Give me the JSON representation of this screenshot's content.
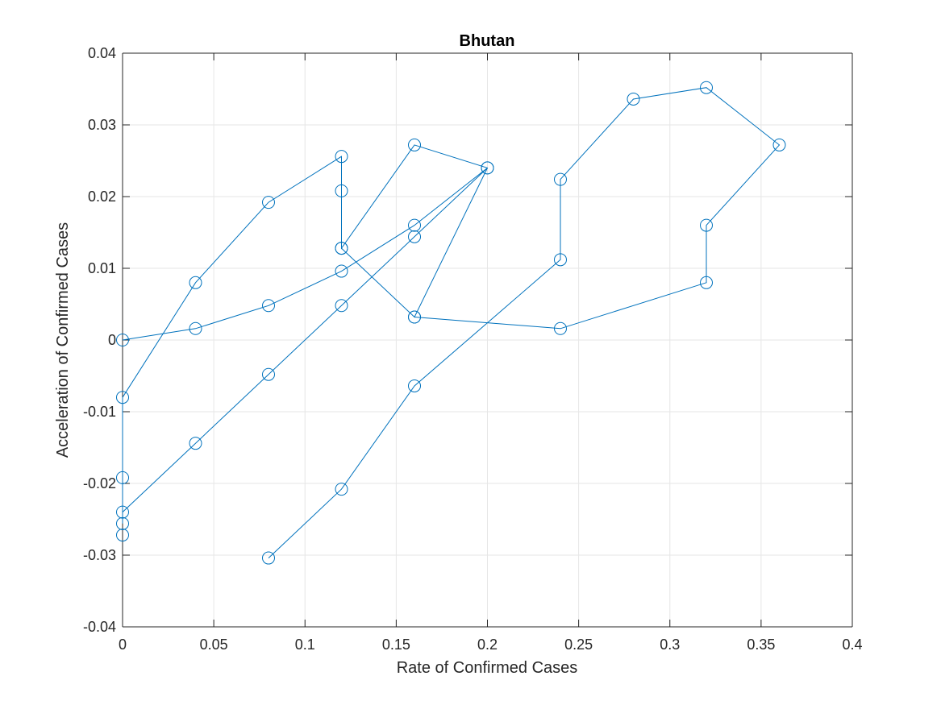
{
  "chart_data": {
    "type": "line",
    "title": "Bhutan",
    "xlabel": "Rate of Confirmed Cases",
    "ylabel": "Acceleration of Confirmed Cases",
    "xlim": [
      0,
      0.4
    ],
    "ylim": [
      -0.04,
      0.04
    ],
    "x_ticks": [
      "0",
      "0.05",
      "0.1",
      "0.15",
      "0.2",
      "0.25",
      "0.3",
      "0.35",
      "0.4"
    ],
    "y_ticks": [
      "-0.04",
      "-0.03",
      "-0.02",
      "-0.01",
      "0",
      "0.01",
      "0.02",
      "0.03",
      "0.04"
    ],
    "grid": true,
    "marker": "circle",
    "line_color": "#0072BD",
    "series": [
      {
        "x": [
          0,
          0.04,
          0.08,
          0.12,
          0.16,
          0.2,
          0.16,
          0.12,
          0.08,
          0.04,
          0,
          0,
          0,
          0,
          0.04,
          0.08,
          0.12,
          0.12,
          0.12,
          0.16,
          0.2,
          0.16,
          0.12,
          0.16,
          0.24,
          0.32,
          0.32,
          0.36,
          0.32,
          0.28,
          0.24,
          0.24,
          0.16,
          0.12,
          0.08
        ],
        "y": [
          0,
          0.0016,
          0.0048,
          0.0096,
          0.016,
          0.024,
          0.0144,
          0.0048,
          -0.0048,
          -0.0144,
          -0.024,
          -0.0256,
          -0.0192,
          -0.008,
          0.008,
          0.0192,
          0.0256,
          0.0208,
          0.0128,
          0.0272,
          0.024,
          0.0032,
          0.0128,
          0.0032,
          0.0016,
          0.008,
          0.016,
          0.0272,
          0.0352,
          0.0336,
          0.0224,
          0.0112,
          -0.0064,
          -0.0208,
          -0.0304
        ]
      }
    ],
    "extra_points": [
      {
        "x": 0,
        "y": -0.0272
      }
    ]
  }
}
